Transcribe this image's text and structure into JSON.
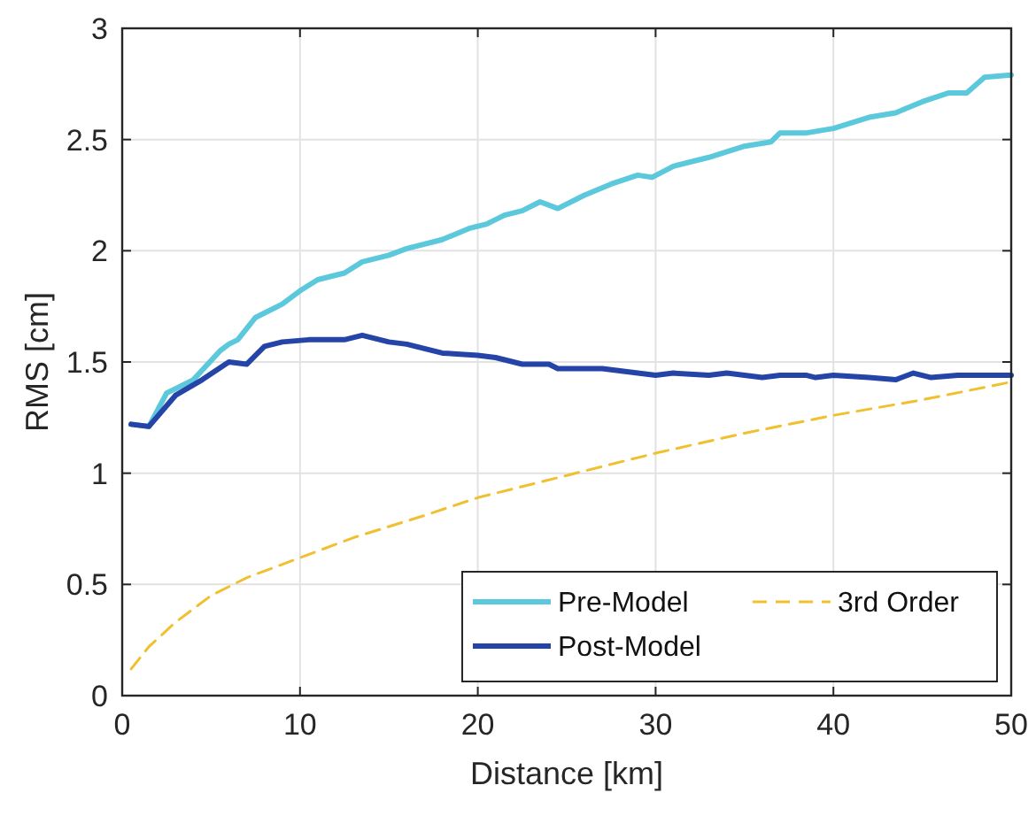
{
  "chart_data": {
    "type": "line",
    "xlabel": "Distance [km]",
    "ylabel": "RMS [cm]",
    "xlim": [
      0,
      50
    ],
    "ylim": [
      0,
      3
    ],
    "xticks": [
      0,
      10,
      20,
      30,
      40,
      50
    ],
    "yticks": [
      0,
      0.5,
      1,
      1.5,
      2,
      2.5,
      3
    ],
    "grid": true,
    "legend": "bottom right",
    "series": [
      {
        "name": "Pre-Model",
        "color": "#5bc8dc",
        "line_style": "solid",
        "x": [
          0.5,
          1.5,
          2.5,
          4,
          5.5,
          6,
          6.5,
          7.5,
          9,
          10,
          11,
          12.5,
          13.5,
          15,
          16,
          18,
          19.5,
          20.5,
          21.5,
          22.5,
          23.5,
          24.5,
          26,
          27.5,
          29,
          29.8,
          31,
          33,
          35,
          36.5,
          37,
          38.5,
          40,
          42,
          43.5,
          45,
          46.5,
          47.5,
          48.5,
          50
        ],
        "values": [
          1.22,
          1.21,
          1.36,
          1.42,
          1.55,
          1.58,
          1.6,
          1.7,
          1.76,
          1.82,
          1.87,
          1.9,
          1.95,
          1.98,
          2.01,
          2.05,
          2.1,
          2.12,
          2.16,
          2.18,
          2.22,
          2.19,
          2.25,
          2.3,
          2.34,
          2.33,
          2.38,
          2.42,
          2.47,
          2.49,
          2.53,
          2.53,
          2.55,
          2.6,
          2.62,
          2.67,
          2.71,
          2.71,
          2.78,
          2.79
        ]
      },
      {
        "name": "Post-Model",
        "color": "#2444a8",
        "line_style": "solid",
        "x": [
          0.5,
          1.5,
          3,
          4.5,
          6,
          7,
          8,
          9,
          10.5,
          12.5,
          13.5,
          15,
          16,
          18,
          20,
          21,
          22.5,
          24,
          24.5,
          27,
          29,
          30,
          31,
          33,
          34,
          36,
          37,
          38.5,
          39,
          40,
          42,
          43.5,
          44.5,
          45.5,
          47,
          50
        ],
        "values": [
          1.22,
          1.21,
          1.35,
          1.42,
          1.5,
          1.49,
          1.57,
          1.59,
          1.6,
          1.6,
          1.62,
          1.59,
          1.58,
          1.54,
          1.53,
          1.52,
          1.49,
          1.49,
          1.47,
          1.47,
          1.45,
          1.44,
          1.45,
          1.44,
          1.45,
          1.43,
          1.44,
          1.44,
          1.43,
          1.44,
          1.43,
          1.42,
          1.45,
          1.43,
          1.44,
          1.44
        ]
      },
      {
        "name": "3rd Order",
        "color": "#f0c030",
        "line_style": "dashed",
        "x": [
          0.5,
          1.5,
          3,
          5,
          7,
          10,
          13,
          17,
          20,
          25,
          30,
          35,
          40,
          45,
          50
        ],
        "values": [
          0.12,
          0.22,
          0.33,
          0.45,
          0.53,
          0.62,
          0.71,
          0.81,
          0.89,
          0.99,
          1.09,
          1.18,
          1.26,
          1.33,
          1.41
        ]
      }
    ]
  }
}
